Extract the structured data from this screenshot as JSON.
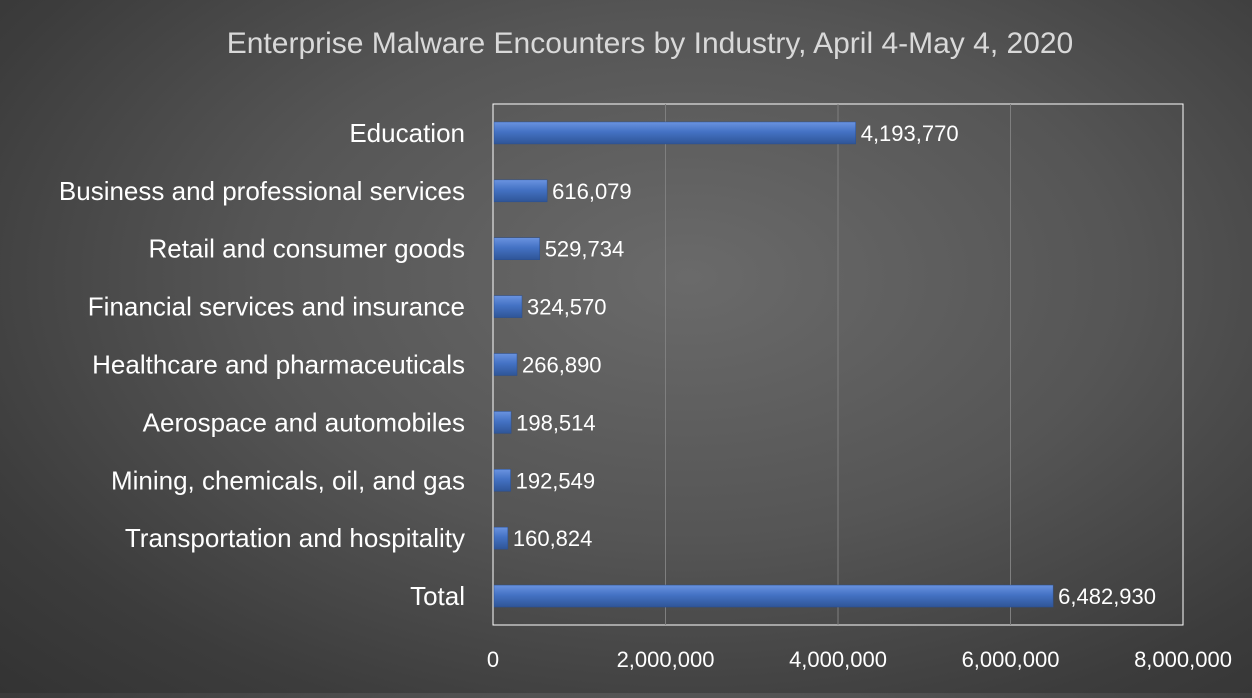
{
  "chart_data": {
    "type": "bar",
    "orientation": "horizontal",
    "title": "Enterprise Malware Encounters by Industry, April 4-May 4, 2020",
    "xlabel": "",
    "ylabel": "",
    "categories": [
      "Education",
      "Business and professional services",
      "Retail and consumer goods",
      "Financial services and insurance",
      "Healthcare and pharmaceuticals",
      "Aerospace and automobiles",
      "Mining, chemicals, oil, and gas",
      "Transportation and hospitality",
      "Total"
    ],
    "values": [
      4193770,
      616079,
      529734,
      324570,
      266890,
      198514,
      192549,
      160824,
      6482930
    ],
    "data_labels": [
      "4,193,770",
      "616,079",
      "529,734",
      "324,570",
      "266,890",
      "198,514",
      "192,549",
      "160,824",
      "6,482,930"
    ],
    "xlim": [
      0,
      8000000
    ],
    "x_ticks": [
      0,
      2000000,
      4000000,
      6000000,
      8000000
    ],
    "x_tick_labels": [
      "0",
      "2,000,000",
      "4,000,000",
      "6,000,000",
      "8,000,000"
    ],
    "grid": true,
    "legend": "none",
    "colors": {
      "bar": "#4472c4",
      "text": "#ffffff",
      "title": "#d9d9d9",
      "gridline": "#7f7f7f",
      "plot_border": "#ffffff"
    }
  }
}
